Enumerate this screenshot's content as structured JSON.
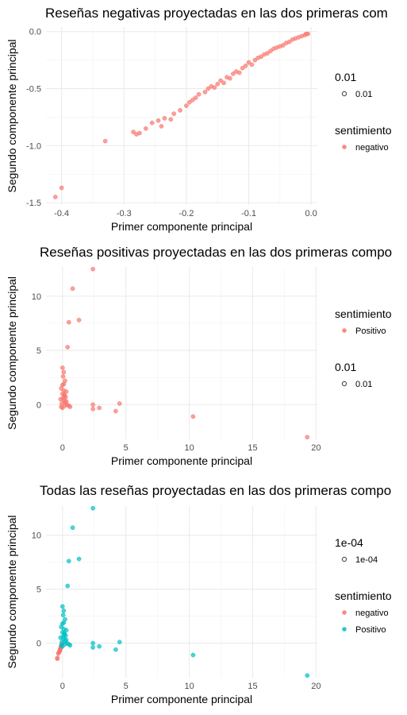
{
  "chart_data": [
    {
      "type": "scatter",
      "title": "Reseñas negativas proyectadas en las dos primeras com",
      "xlabel": "Primer componente principal",
      "ylabel": "Segundo componente principal",
      "xlim": [
        -0.425,
        0.01
      ],
      "ylim": [
        -1.52,
        0.04
      ],
      "xticks": [
        -0.4,
        -0.3,
        -0.2,
        -0.1,
        0.0
      ],
      "xtick_labels": [
        "-0.4",
        "-0.3",
        "-0.2",
        "-0.1",
        "0.0"
      ],
      "yticks": [
        0.0,
        -0.5,
        -1.0,
        -1.5
      ],
      "ytick_labels": [
        "0.0",
        "-0.5",
        "-1.0",
        "-1.5"
      ],
      "grid": true,
      "legend_position": "right",
      "legends": [
        {
          "title": "0.01",
          "entries": [
            {
              "label": "0.01",
              "color": "#555555",
              "hollow": true
            }
          ]
        },
        {
          "title": "sentimiento",
          "entries": [
            {
              "label": "negativo",
              "color": "#F8766D",
              "hollow": false
            }
          ]
        }
      ],
      "series": [
        {
          "name": "negativo",
          "color": "#F8766D",
          "x": [
            -0.41,
            -0.4,
            -0.33,
            -0.285,
            -0.28,
            -0.275,
            -0.265,
            -0.255,
            -0.245,
            -0.24,
            -0.235,
            -0.225,
            -0.22,
            -0.21,
            -0.2,
            -0.195,
            -0.19,
            -0.185,
            -0.18,
            -0.17,
            -0.165,
            -0.16,
            -0.155,
            -0.15,
            -0.145,
            -0.14,
            -0.135,
            -0.13,
            -0.125,
            -0.12,
            -0.115,
            -0.11,
            -0.105,
            -0.1,
            -0.095,
            -0.09,
            -0.085,
            -0.08,
            -0.075,
            -0.07,
            -0.065,
            -0.06,
            -0.055,
            -0.05,
            -0.045,
            -0.04,
            -0.035,
            -0.03,
            -0.025,
            -0.02,
            -0.015,
            -0.01,
            -0.008,
            -0.005
          ],
          "y": [
            -1.45,
            -1.37,
            -0.96,
            -0.88,
            -0.9,
            -0.89,
            -0.85,
            -0.8,
            -0.78,
            -0.83,
            -0.76,
            -0.77,
            -0.72,
            -0.69,
            -0.65,
            -0.62,
            -0.6,
            -0.58,
            -0.55,
            -0.53,
            -0.5,
            -0.48,
            -0.49,
            -0.46,
            -0.43,
            -0.45,
            -0.4,
            -0.41,
            -0.37,
            -0.35,
            -0.36,
            -0.32,
            -0.3,
            -0.27,
            -0.29,
            -0.25,
            -0.23,
            -0.22,
            -0.2,
            -0.19,
            -0.17,
            -0.15,
            -0.14,
            -0.13,
            -0.12,
            -0.1,
            -0.09,
            -0.07,
            -0.06,
            -0.05,
            -0.04,
            -0.03,
            -0.02,
            -0.02
          ]
        }
      ]
    },
    {
      "type": "scatter",
      "title": "Reseñas positivas proyectadas en las dos primeras compo",
      "xlabel": "Primer componente principal",
      "ylabel": "Segundo componente principal",
      "xlim": [
        -1.3,
        20.1
      ],
      "ylim": [
        -3.2,
        12.7
      ],
      "xticks": [
        0,
        5,
        10,
        15,
        20
      ],
      "xtick_labels": [
        "0",
        "5",
        "10",
        "15",
        "20"
      ],
      "yticks": [
        0,
        5,
        10
      ],
      "ytick_labels": [
        "0",
        "5",
        "10"
      ],
      "grid": true,
      "legend_position": "right",
      "legends": [
        {
          "title": "sentimiento",
          "entries": [
            {
              "label": "Positivo",
              "color": "#F8766D",
              "hollow": false
            }
          ]
        },
        {
          "title": "0.01",
          "entries": [
            {
              "label": "0.01",
              "color": "#555555",
              "hollow": true
            }
          ]
        }
      ],
      "series": [
        {
          "name": "Positivo",
          "color": "#F8766D",
          "x": [
            2.4,
            0.8,
            1.3,
            0.5,
            0.4,
            0.0,
            0.1,
            0.05,
            0.2,
            0.1,
            -0.1,
            0.3,
            0.0,
            0.15,
            0.25,
            -0.15,
            0.1,
            0.2,
            0.35,
            0.5,
            0.6,
            0.0,
            -0.05,
            0.3,
            0.1,
            2.4,
            2.4,
            2.9,
            4.5,
            4.2,
            10.3,
            19.3,
            0.05,
            -0.1,
            0.15,
            0.0,
            0.2
          ],
          "y": [
            12.5,
            10.7,
            7.8,
            7.6,
            5.3,
            3.4,
            3.0,
            2.6,
            2.2,
            1.9,
            1.5,
            1.2,
            1.0,
            0.8,
            0.7,
            0.5,
            0.4,
            0.2,
            0.0,
            -0.1,
            -0.2,
            -0.3,
            0.1,
            0.3,
            1.3,
            0.0,
            -0.4,
            -0.3,
            0.1,
            -0.6,
            -1.1,
            -3.0,
            0.6,
            -0.2,
            0.9,
            1.8,
            -0.1
          ]
        }
      ]
    },
    {
      "type": "scatter",
      "title": "Todas las reseñas proyectadas en las dos primeras compo",
      "xlabel": "Primer componente principal",
      "ylabel": "Segundo componente principal",
      "xlim": [
        -1.3,
        20.1
      ],
      "ylim": [
        -3.2,
        12.7
      ],
      "xticks": [
        0,
        5,
        10,
        15,
        20
      ],
      "xtick_labels": [
        "0",
        "5",
        "10",
        "15",
        "20"
      ],
      "yticks": [
        0,
        5,
        10
      ],
      "ytick_labels": [
        "0",
        "5",
        "10"
      ],
      "grid": true,
      "legend_position": "right",
      "legends": [
        {
          "title": "1e-04",
          "entries": [
            {
              "label": "1e-04",
              "color": "#555555",
              "hollow": true
            }
          ]
        },
        {
          "title": "sentimiento",
          "entries": [
            {
              "label": "negativo",
              "color": "#F8766D",
              "hollow": false
            },
            {
              "label": "Positivo",
              "color": "#00BFC4",
              "hollow": false
            }
          ]
        }
      ],
      "series": [
        {
          "name": "negativo",
          "color": "#F8766D",
          "x": [
            -0.41,
            -0.4,
            -0.33,
            -0.28,
            -0.25,
            -0.22,
            -0.2,
            -0.18,
            -0.15,
            -0.12,
            -0.1,
            -0.08,
            -0.05,
            -0.03
          ],
          "y": [
            -1.45,
            -1.37,
            -0.96,
            -0.88,
            -0.8,
            -0.72,
            -0.65,
            -0.55,
            -0.46,
            -0.37,
            -0.3,
            -0.22,
            -0.14,
            -0.06
          ]
        },
        {
          "name": "Positivo",
          "color": "#00BFC4",
          "x": [
            2.4,
            0.8,
            1.3,
            0.5,
            0.4,
            0.0,
            0.1,
            0.05,
            0.2,
            0.1,
            -0.1,
            0.3,
            0.0,
            0.15,
            0.25,
            -0.15,
            0.1,
            0.2,
            0.35,
            0.5,
            0.6,
            0.0,
            -0.05,
            0.3,
            0.1,
            2.4,
            2.4,
            2.9,
            4.5,
            4.2,
            10.3,
            19.3,
            0.05,
            -0.1,
            0.15,
            0.0,
            0.2
          ],
          "y": [
            12.5,
            10.7,
            7.8,
            7.6,
            5.3,
            3.4,
            3.0,
            2.6,
            2.2,
            1.9,
            1.5,
            1.2,
            1.0,
            0.8,
            0.7,
            0.5,
            0.4,
            0.2,
            0.0,
            -0.1,
            -0.2,
            -0.3,
            0.1,
            0.3,
            1.3,
            0.0,
            -0.4,
            -0.3,
            0.1,
            -0.6,
            -1.1,
            -3.0,
            0.6,
            -0.2,
            0.9,
            1.8,
            -0.1
          ]
        }
      ]
    }
  ]
}
